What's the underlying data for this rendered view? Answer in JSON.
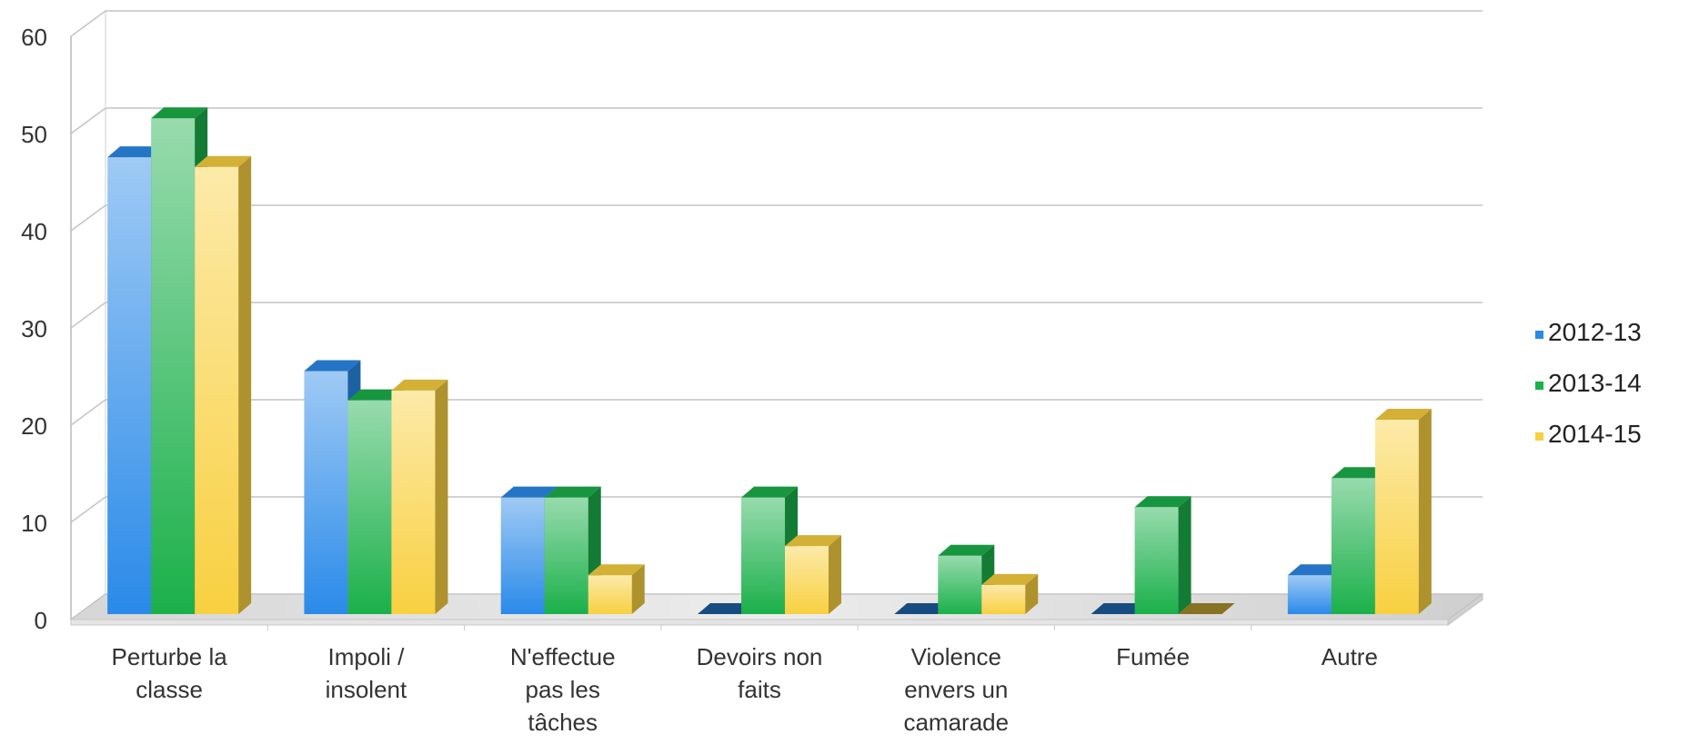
{
  "chart_data": {
    "type": "bar",
    "title": "",
    "xlabel": "",
    "ylabel": "",
    "ylim": [
      0,
      60
    ],
    "yticks": [
      0,
      10,
      20,
      30,
      40,
      50,
      60
    ],
    "grid": true,
    "legend_position": "right",
    "style": "3d-clustered-column",
    "categories": [
      [
        "Perturbe la",
        "classe"
      ],
      [
        "Impoli /",
        "insolent"
      ],
      [
        "N'effectue",
        "pas les",
        "tâches"
      ],
      [
        "Devoirs non",
        "faits"
      ],
      [
        "Violence",
        "envers un",
        "camarade"
      ],
      [
        "Fumée"
      ],
      [
        "Autre"
      ]
    ],
    "series": [
      {
        "name": "2012-13",
        "values": [
          47,
          25,
          12,
          0,
          0,
          0,
          4
        ],
        "color": "#2a8ae8"
      },
      {
        "name": "2013-14",
        "values": [
          51,
          22,
          12,
          12,
          6,
          11,
          14
        ],
        "color": "#1bb04a"
      },
      {
        "name": "2014-15",
        "values": [
          46,
          23,
          4,
          7,
          3,
          0,
          20
        ],
        "color": "#f8d040"
      }
    ]
  }
}
